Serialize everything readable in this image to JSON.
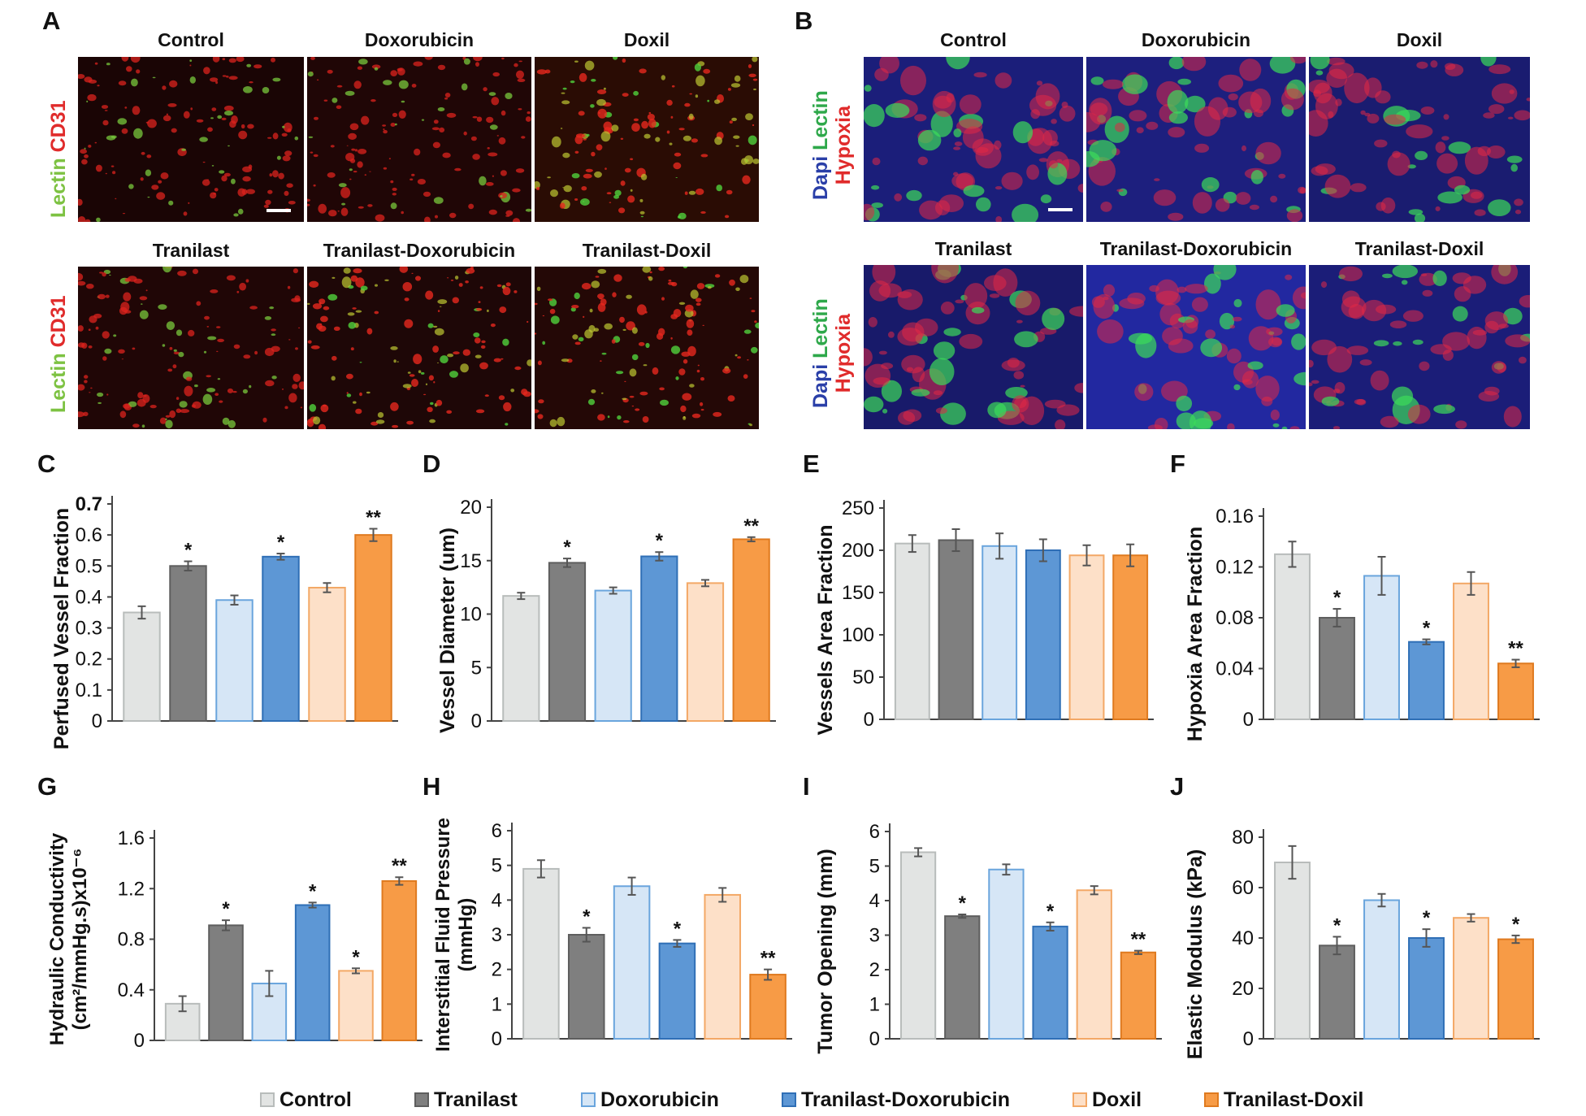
{
  "panels": {
    "A": "A",
    "B": "B",
    "C": "C",
    "D": "D",
    "E": "E",
    "F": "F",
    "G": "G",
    "H": "H",
    "I": "I",
    "J": "J"
  },
  "panel_A": {
    "top_titles": [
      "Control",
      "Doxorubicin",
      "Doxil"
    ],
    "bottom_titles": [
      "Tranilast",
      "Tranilast-Doxorubicin",
      "Tranilast-Doxil"
    ],
    "stain_green": "Lectin",
    "stain_red": "CD31"
  },
  "panel_B": {
    "top_titles": [
      "Control",
      "Doxorubicin",
      "Doxil"
    ],
    "bottom_titles": [
      "Tranilast",
      "Tranilast-Doxorubicin",
      "Tranilast-Doxil"
    ],
    "stain_blue": "Dapi",
    "stain_green": "Lectin",
    "stain_red": "Hypoxia"
  },
  "legend": [
    {
      "name": "Control",
      "fill": "#e2e4e3",
      "stroke": "#b8bcbb"
    },
    {
      "name": "Tranilast",
      "fill": "#7f7f7f",
      "stroke": "#5e5e5e"
    },
    {
      "name": "Doxorubicin",
      "fill": "#d6e6f6",
      "stroke": "#6aa5dd"
    },
    {
      "name": "Tranilast-Doxorubicin",
      "fill": "#5d97d5",
      "stroke": "#2f6fb6"
    },
    {
      "name": "Doxil",
      "fill": "#fde0c8",
      "stroke": "#f3a866"
    },
    {
      "name": "Tranilast-Doxil",
      "fill": "#f79b46",
      "stroke": "#df7a1f"
    }
  ],
  "chart_data": [
    {
      "panel": "C",
      "type": "bar",
      "ylabel": "Perfused Vessel Fraction",
      "categories": [
        "Control",
        "Tranilast",
        "Doxorubicin",
        "Tranilast-Doxorubicin",
        "Doxil",
        "Tranilast-Doxil"
      ],
      "values": [
        0.35,
        0.5,
        0.39,
        0.53,
        0.43,
        0.6
      ],
      "errors": [
        0.02,
        0.015,
        0.015,
        0.01,
        0.015,
        0.02
      ],
      "significance": [
        "",
        "*",
        "",
        "*",
        "",
        "**"
      ],
      "ylim": [
        0,
        0.7
      ],
      "yticks": [
        "0",
        "0.1",
        "0.2",
        "0.3",
        "0.4",
        "0.5",
        "0.6",
        "0.7"
      ]
    },
    {
      "panel": "D",
      "type": "bar",
      "ylabel": "Vessel Diameter (um)",
      "categories": [
        "Control",
        "Tranilast",
        "Doxorubicin",
        "Tranilast-Doxorubicin",
        "Doxil",
        "Tranilast-Doxil"
      ],
      "values": [
        11.7,
        14.8,
        12.2,
        15.4,
        12.9,
        17.0
      ],
      "errors": [
        0.3,
        0.4,
        0.3,
        0.4,
        0.3,
        0.2
      ],
      "significance": [
        "",
        "*",
        "",
        "*",
        "",
        "**"
      ],
      "ylim": [
        0,
        20
      ],
      "yticks": [
        "0",
        "5",
        "10",
        "15",
        "20"
      ]
    },
    {
      "panel": "E",
      "type": "bar",
      "ylabel": "Vessels Area Fraction",
      "categories": [
        "Control",
        "Tranilast",
        "Doxorubicin",
        "Tranilast-Doxorubicin",
        "Doxil",
        "Tranilast-Doxil"
      ],
      "values": [
        208,
        212,
        205,
        200,
        194,
        194
      ],
      "errors": [
        10,
        13,
        15,
        13,
        12,
        13
      ],
      "significance": [
        "",
        "",
        "",
        "",
        "",
        ""
      ],
      "ylim": [
        0,
        250
      ],
      "yticks": [
        "0",
        "50",
        "100",
        "150",
        "200",
        "250"
      ]
    },
    {
      "panel": "F",
      "type": "bar",
      "ylabel": "Hypoxia Area Fraction",
      "categories": [
        "Control",
        "Tranilast",
        "Doxorubicin",
        "Tranilast-Doxorubicin",
        "Doxil",
        "Tranilast-Doxil"
      ],
      "values": [
        0.13,
        0.08,
        0.113,
        0.061,
        0.107,
        0.044
      ],
      "errors": [
        0.01,
        0.007,
        0.015,
        0.002,
        0.009,
        0.003
      ],
      "significance": [
        "",
        "*",
        "",
        "*",
        "",
        "**"
      ],
      "ylim": [
        0,
        0.16
      ],
      "yticks": [
        "0",
        "0.04",
        "0.08",
        "0.12",
        "0.16"
      ]
    },
    {
      "panel": "G",
      "type": "bar",
      "ylabel_lines": [
        "Hydraulic Conductivity",
        "(cm²/mmHg.s)x10⁻⁶"
      ],
      "categories": [
        "Control",
        "Tranilast",
        "Doxorubicin",
        "Tranilast-Doxorubicin",
        "Doxil",
        "Tranilast-Doxil"
      ],
      "values": [
        0.29,
        0.91,
        0.45,
        1.07,
        0.55,
        1.26
      ],
      "errors": [
        0.06,
        0.04,
        0.1,
        0.02,
        0.02,
        0.03
      ],
      "significance": [
        "",
        "*",
        "",
        "*",
        "*",
        "**"
      ],
      "ylim": [
        0,
        1.6
      ],
      "yticks": [
        "0",
        "0.4",
        "0.8",
        "1.2",
        "1.6"
      ]
    },
    {
      "panel": "H",
      "type": "bar",
      "ylabel_lines": [
        "Interstitial Fluid Pressure",
        "(mmHg)"
      ],
      "categories": [
        "Control",
        "Tranilast",
        "Doxorubicin",
        "Tranilast-Doxorubicin",
        "Doxil",
        "Tranilast-Doxil"
      ],
      "values": [
        4.9,
        3.0,
        4.4,
        2.75,
        4.15,
        1.85
      ],
      "errors": [
        0.25,
        0.2,
        0.25,
        0.1,
        0.2,
        0.15
      ],
      "significance": [
        "",
        "*",
        "",
        "*",
        "",
        "**"
      ],
      "ylim": [
        0,
        6
      ],
      "yticks": [
        "0",
        "1",
        "2",
        "3",
        "4",
        "5",
        "6"
      ]
    },
    {
      "panel": "I",
      "type": "bar",
      "ylabel": "Tumor Opening (mm)",
      "categories": [
        "Control",
        "Tranilast",
        "Doxorubicin",
        "Tranilast-Doxorubicin",
        "Doxil",
        "Tranilast-Doxil"
      ],
      "values": [
        5.4,
        3.55,
        4.9,
        3.25,
        4.3,
        2.5
      ],
      "errors": [
        0.12,
        0.05,
        0.15,
        0.12,
        0.12,
        0.05
      ],
      "significance": [
        "",
        "*",
        "",
        "*",
        "",
        "**"
      ],
      "ylim": [
        0,
        6
      ],
      "yticks": [
        "0",
        "1",
        "2",
        "3",
        "4",
        "5",
        "6"
      ]
    },
    {
      "panel": "J",
      "type": "bar",
      "ylabel": "Elastic Modulus (kPa)",
      "categories": [
        "Control",
        "Tranilast",
        "Doxorubicin",
        "Tranilast-Doxorubicin",
        "Doxil",
        "Tranilast-Doxil"
      ],
      "values": [
        70,
        37,
        55,
        40,
        48,
        39.5
      ],
      "errors": [
        6.5,
        3.5,
        2.5,
        3.5,
        1.5,
        1.5
      ],
      "significance": [
        "",
        "*",
        "",
        "*",
        "",
        "*"
      ],
      "ylim": [
        0,
        80
      ],
      "yticks": [
        "0",
        "20",
        "40",
        "60",
        "80"
      ]
    }
  ]
}
